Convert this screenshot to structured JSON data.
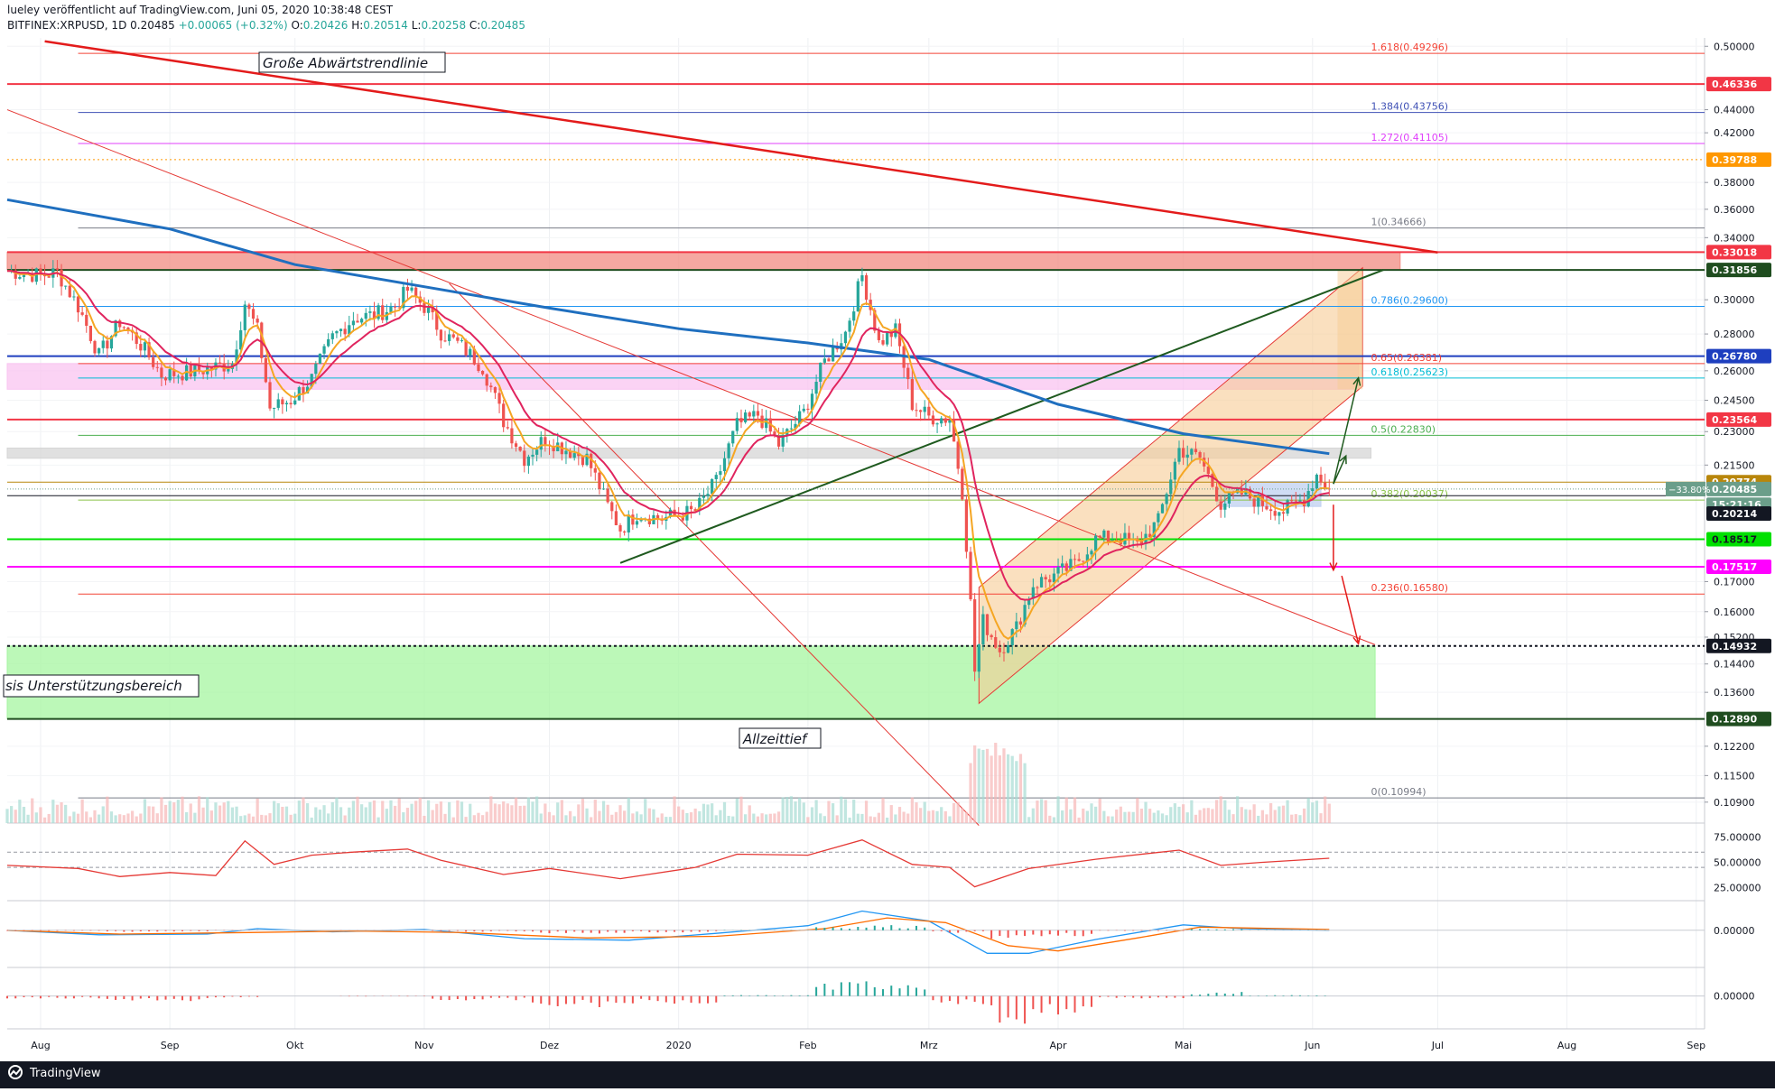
{
  "header": {
    "line1": "lueley veröffentlicht auf TradingView.com, Juni 05, 2020 10:38:48 CEST",
    "symbol_line": "BITFINEX:XRPUSD, 1D",
    "last": "0.20485",
    "change": "+0.00065 (+0.32%)",
    "ohlc": [
      {
        "k": "O:",
        "v": "0.20426"
      },
      {
        "k": "H:",
        "v": "0.20514"
      },
      {
        "k": "L:",
        "v": "0.20258"
      },
      {
        "k": "C:",
        "v": "0.20485"
      }
    ]
  },
  "footer": {
    "brand": "TradingView"
  },
  "colors": {
    "up": "#26a69a",
    "down": "#ef5350",
    "text": "#131722",
    "muted": "#787b86",
    "red": "#f23645",
    "green": "#1f7a1f",
    "blue": "#1e3fbf",
    "magenta": "#ff00ff"
  },
  "chart_data": [
    {
      "type": "candlestick",
      "title": "BITFINEX:XRPUSD, 1D",
      "x_axis": {
        "type": "date",
        "range": [
          "2019-07-24",
          "2020-09-03"
        ],
        "tick_labels": [
          {
            "label": "Aug",
            "date": "2019-08-01"
          },
          {
            "label": "Sep",
            "date": "2019-09-01"
          },
          {
            "label": "Okt",
            "date": "2019-10-01"
          },
          {
            "label": "Nov",
            "date": "2019-11-01"
          },
          {
            "label": "Dez",
            "date": "2019-12-01"
          },
          {
            "label": "2020",
            "date": "2020-01-01"
          },
          {
            "label": "Feb",
            "date": "2020-02-01"
          },
          {
            "label": "Mrz",
            "date": "2020-03-01"
          },
          {
            "label": "Apr",
            "date": "2020-04-01"
          },
          {
            "label": "Mai",
            "date": "2020-05-01"
          },
          {
            "label": "Jun",
            "date": "2020-06-01"
          },
          {
            "label": "Jul",
            "date": "2020-07-01"
          },
          {
            "label": "Aug",
            "date": "2020-08-01"
          },
          {
            "label": "Sep",
            "date": "2020-09-01"
          }
        ]
      },
      "y_axis": {
        "scale": "log",
        "range": [
          0.1045,
          0.5085
        ],
        "tick_labels": [
          "0.50000",
          "0.44000",
          "0.42000",
          "0.38000",
          "0.36000",
          "0.34000",
          "0.30000",
          "0.28000",
          "0.26000",
          "0.24500",
          "0.23000",
          "0.21500",
          "0.17000",
          "0.16000",
          "0.15200",
          "0.14400",
          "0.13600",
          "0.12200",
          "0.11500",
          "0.10900"
        ]
      },
      "close_path": [
        [
          "2019-07-24",
          0.318
        ],
        [
          "2019-08-01",
          0.315
        ],
        [
          "2019-08-05",
          0.317
        ],
        [
          "2019-08-10",
          0.296
        ],
        [
          "2019-08-15",
          0.268
        ],
        [
          "2019-08-20",
          0.287
        ],
        [
          "2019-08-25",
          0.274
        ],
        [
          "2019-08-30",
          0.258
        ],
        [
          "2019-09-05",
          0.259
        ],
        [
          "2019-09-10",
          0.261
        ],
        [
          "2019-09-16",
          0.264
        ],
        [
          "2019-09-19",
          0.298
        ],
        [
          "2019-09-22",
          0.282
        ],
        [
          "2019-09-25",
          0.241
        ],
        [
          "2019-09-30",
          0.245
        ],
        [
          "2019-10-05",
          0.256
        ],
        [
          "2019-10-10",
          0.278
        ],
        [
          "2019-10-15",
          0.289
        ],
        [
          "2019-10-20",
          0.291
        ],
        [
          "2019-10-25",
          0.296
        ],
        [
          "2019-10-28",
          0.306
        ],
        [
          "2019-11-01",
          0.296
        ],
        [
          "2019-11-05",
          0.281
        ],
        [
          "2019-11-10",
          0.273
        ],
        [
          "2019-11-15",
          0.262
        ],
        [
          "2019-11-20",
          0.235
        ],
        [
          "2019-11-25",
          0.218
        ],
        [
          "2019-11-30",
          0.227
        ],
        [
          "2019-12-05",
          0.222
        ],
        [
          "2019-12-10",
          0.218
        ],
        [
          "2019-12-15",
          0.198
        ],
        [
          "2019-12-18",
          0.189
        ],
        [
          "2019-12-22",
          0.195
        ],
        [
          "2019-12-28",
          0.193
        ],
        [
          "2020-01-05",
          0.196
        ],
        [
          "2020-01-10",
          0.208
        ],
        [
          "2020-01-15",
          0.233
        ],
        [
          "2020-01-20",
          0.238
        ],
        [
          "2020-01-25",
          0.224
        ],
        [
          "2020-01-31",
          0.239
        ],
        [
          "2020-02-05",
          0.265
        ],
        [
          "2020-02-10",
          0.281
        ],
        [
          "2020-02-14",
          0.315
        ],
        [
          "2020-02-18",
          0.275
        ],
        [
          "2020-02-22",
          0.282
        ],
        [
          "2020-02-26",
          0.243
        ],
        [
          "2020-03-01",
          0.237
        ],
        [
          "2020-03-06",
          0.236
        ],
        [
          "2020-03-09",
          0.204
        ],
        [
          "2020-03-12",
          0.142
        ],
        [
          "2020-03-14",
          0.157
        ],
        [
          "2020-03-18",
          0.148
        ],
        [
          "2020-03-22",
          0.155
        ],
        [
          "2020-03-26",
          0.169
        ],
        [
          "2020-03-31",
          0.172
        ],
        [
          "2020-04-05",
          0.176
        ],
        [
          "2020-04-10",
          0.185
        ],
        [
          "2020-04-15",
          0.186
        ],
        [
          "2020-04-20",
          0.183
        ],
        [
          "2020-04-25",
          0.192
        ],
        [
          "2020-04-30",
          0.222
        ],
        [
          "2020-05-05",
          0.218
        ],
        [
          "2020-05-10",
          0.199
        ],
        [
          "2020-05-15",
          0.203
        ],
        [
          "2020-05-20",
          0.199
        ],
        [
          "2020-05-25",
          0.196
        ],
        [
          "2020-05-30",
          0.201
        ],
        [
          "2020-06-02",
          0.211
        ],
        [
          "2020-06-05",
          0.20485
        ]
      ],
      "moving_averages": {
        "ma_blue": [
          [
            "2019-07-24",
            0.367
          ],
          [
            "2019-09-01",
            0.346
          ],
          [
            "2019-10-01",
            0.322
          ],
          [
            "2019-11-01",
            0.308
          ],
          [
            "2019-12-01",
            0.295
          ],
          [
            "2020-01-01",
            0.283
          ],
          [
            "2020-02-01",
            0.275
          ],
          [
            "2020-03-01",
            0.266
          ],
          [
            "2020-04-01",
            0.243
          ],
          [
            "2020-05-01",
            0.229
          ],
          [
            "2020-06-05",
            0.22
          ]
        ],
        "ma_orange": "short exponential average following price",
        "ma_crimson": "medium average following price"
      },
      "horizontal_levels": [
        {
          "label": "1.618(0.49296)",
          "price": 0.49296,
          "color": "#f44336"
        },
        {
          "label": "0.46336",
          "price": 0.46336,
          "color": "#f23645"
        },
        {
          "label": "1.384(0.43756)",
          "price": 0.43756,
          "color": "#3f51b5"
        },
        {
          "label": "1.272(0.41105)",
          "price": 0.41105,
          "color": "#e040fb"
        },
        {
          "label": "0.39788",
          "price": 0.39788,
          "color": "#ff9800"
        },
        {
          "label": "1(0.34666)",
          "price": 0.34666,
          "color": "#787b86"
        },
        {
          "label": "0.33018",
          "price": 0.33018,
          "color": "#f23645"
        },
        {
          "label": "0.31856",
          "price": 0.31856,
          "color": "#1f4d1f"
        },
        {
          "label": "0.786(0.29600)",
          "price": 0.296,
          "color": "#2196f3"
        },
        {
          "label": "0.26780",
          "price": 0.2678,
          "color": "#1e3fbf"
        },
        {
          "label": "0.65(0.26381)",
          "price": 0.26381,
          "color": "#f44336"
        },
        {
          "label": "0.618(0.25623)",
          "price": 0.25623,
          "color": "#00bcd4"
        },
        {
          "label": "0.23564",
          "price": 0.23564,
          "color": "#f23645"
        },
        {
          "label": "0.5(0.22830)",
          "price": 0.2283,
          "color": "#4caf50"
        },
        {
          "label": "0.20774",
          "price": 0.20774,
          "color": "#b8860b"
        },
        {
          "label": "0.382(0.20037)",
          "price": 0.20037,
          "color": "#8bc34a"
        },
        {
          "label": "0.20214",
          "price": 0.20214,
          "color": "#131722"
        },
        {
          "label": "0.18517",
          "price": 0.18517,
          "color": "#00e000"
        },
        {
          "label": "0.17517",
          "price": 0.17517,
          "color": "#ff00ff"
        },
        {
          "label": "0.236(0.16580)",
          "price": 0.1658,
          "color": "#f44336"
        },
        {
          "label": "0.14932",
          "price": 0.14932,
          "color": "#131722"
        },
        {
          "label": "0.12890",
          "price": 0.1289,
          "color": "#1f4d1f"
        },
        {
          "label": "0(0.10994)",
          "price": 0.10994,
          "color": "#787b86"
        }
      ],
      "price_tags": [
        {
          "text": "0.46336",
          "price": 0.46336,
          "bg": "#f23645",
          "fg": "#ffffff"
        },
        {
          "text": "0.39788",
          "price": 0.39788,
          "bg": "#ff9800",
          "fg": "#ffffff"
        },
        {
          "text": "0.33018",
          "price": 0.33018,
          "bg": "#f23645",
          "fg": "#ffffff"
        },
        {
          "text": "0.31856",
          "price": 0.31856,
          "bg": "#1f4d1f",
          "fg": "#ffffff"
        },
        {
          "text": "0.26780",
          "price": 0.2678,
          "bg": "#1e3fbf",
          "fg": "#ffffff"
        },
        {
          "text": "0.23564",
          "price": 0.23564,
          "bg": "#f23645",
          "fg": "#ffffff"
        },
        {
          "text": "0.20774",
          "price": 0.20774,
          "bg": "#b8860b",
          "fg": "#ffffff"
        },
        {
          "text": "0.20485",
          "price": 0.20485,
          "bg": "#6b9e8a",
          "fg": "#ffffff"
        },
        {
          "text": "15:21:16",
          "price": 0.1985,
          "bg": "#6b9e8a",
          "fg": "#ffffff"
        },
        {
          "text": "0.20214",
          "price": 0.195,
          "bg": "#131722",
          "fg": "#ffffff"
        },
        {
          "text": "0.18517",
          "price": 0.18517,
          "bg": "#00e000",
          "fg": "#131722"
        },
        {
          "text": "0.17517",
          "price": 0.17517,
          "bg": "#ff00ff",
          "fg": "#ffffff"
        },
        {
          "text": "0.14932",
          "price": 0.14932,
          "bg": "#131722",
          "fg": "#ffffff"
        },
        {
          "text": "0.12890",
          "price": 0.1289,
          "bg": "#1f4d1f",
          "fg": "#ffffff"
        }
      ],
      "percent_tag": "−33.80%",
      "zones": [
        {
          "name": "resistance-zone-red",
          "from": "2019-07-24",
          "to": "2020-06-22",
          "low": 0.3186,
          "high": 0.3302,
          "color": "#f28b82"
        },
        {
          "name": "zone-pink",
          "from": "2019-07-24",
          "to": "2020-06-12",
          "low": 0.2505,
          "high": 0.2638,
          "color": "#f9c4f0"
        },
        {
          "name": "zone-grey",
          "from": "2019-07-24",
          "to": "2020-06-15",
          "low": 0.218,
          "high": 0.2225,
          "color": "#d5d5d5"
        },
        {
          "name": "support-zone-green",
          "from": "2019-07-24",
          "to": "2020-06-16",
          "low": 0.1289,
          "high": 0.1493,
          "color": "#a5f5a0"
        },
        {
          "name": "consolidation-box",
          "from": "2020-05-09",
          "to": "2020-06-03",
          "low": 0.1978,
          "high": 0.208,
          "color": "#bfd0f0"
        }
      ],
      "trendlines": [
        {
          "name": "great-downtrend-line",
          "from": [
            "2019-08-02",
            0.505
          ],
          "to": [
            "2020-07-01",
            0.33
          ],
          "color": "#e31b1b"
        },
        {
          "name": "thin-downtrend-1",
          "from": [
            "2019-07-24",
            0.44
          ],
          "to": [
            "2020-06-16",
            0.1497
          ],
          "color": "#e53935"
        },
        {
          "name": "thin-downtrend-2",
          "from": [
            "2019-11-07",
            0.31
          ],
          "to": [
            "2020-03-13",
            0.104
          ],
          "color": "#e53935"
        },
        {
          "name": "rising-support-line",
          "from": [
            "2019-12-18",
            0.1765
          ],
          "to": [
            "2020-06-18",
            0.3186
          ],
          "color": "#1f5a1f"
        }
      ],
      "channel": {
        "color": "#f6cb94",
        "lower": [
          [
            "2020-03-13",
            0.133
          ],
          [
            "2020-06-13",
            0.252
          ]
        ],
        "upper": [
          [
            "2020-03-13",
            0.168
          ],
          [
            "2020-06-13",
            0.32
          ]
        ]
      },
      "annotations": [
        "Große Abwärtstrendlinie",
        "sis Unterstützungsbereich",
        "Allzeittief"
      ]
    },
    {
      "type": "line",
      "name": "rsi-panel",
      "y_tick_labels": [
        "75.00000",
        "50.00000",
        "25.00000"
      ],
      "y_range": [
        15,
        85
      ],
      "series": [
        [
          [
            "2019-07-24",
            47
          ],
          [
            "2019-08-10",
            44
          ],
          [
            "2019-08-20",
            36
          ],
          [
            "2019-09-01",
            40
          ],
          [
            "2019-09-12",
            37
          ],
          [
            "2019-09-19",
            71
          ],
          [
            "2019-09-26",
            48
          ],
          [
            "2019-10-05",
            57
          ],
          [
            "2019-10-15",
            60
          ],
          [
            "2019-10-28",
            63
          ],
          [
            "2019-11-05",
            52
          ],
          [
            "2019-11-20",
            38
          ],
          [
            "2019-12-01",
            44
          ],
          [
            "2019-12-18",
            34
          ],
          [
            "2020-01-05",
            45
          ],
          [
            "2020-01-15",
            58
          ],
          [
            "2020-02-01",
            57
          ],
          [
            "2020-02-14",
            72
          ],
          [
            "2020-02-26",
            48
          ],
          [
            "2020-03-06",
            45
          ],
          [
            "2020-03-12",
            26
          ],
          [
            "2020-03-25",
            44
          ],
          [
            "2020-04-10",
            53
          ],
          [
            "2020-04-30",
            62
          ],
          [
            "2020-05-10",
            47
          ],
          [
            "2020-05-20",
            50
          ],
          [
            "2020-06-05",
            54
          ]
        ]
      ],
      "reference_lines": [
        60,
        45
      ]
    },
    {
      "type": "line",
      "name": "macd-panel",
      "y_tick_labels": [
        "0.00000"
      ],
      "y_range": [
        -0.045,
        0.035
      ],
      "series": [
        [
          [
            "2019-07-24",
            0.0
          ],
          [
            "2019-08-15",
            -0.006
          ],
          [
            "2019-09-10",
            -0.005
          ],
          [
            "2019-09-22",
            0.002
          ],
          [
            "2019-10-10",
            -0.002
          ],
          [
            "2019-11-01",
            0.001
          ],
          [
            "2019-11-25",
            -0.011
          ],
          [
            "2019-12-20",
            -0.013
          ],
          [
            "2020-01-10",
            -0.004
          ],
          [
            "2020-02-01",
            0.006
          ],
          [
            "2020-02-14",
            0.025
          ],
          [
            "2020-03-01",
            0.012
          ],
          [
            "2020-03-15",
            -0.03
          ],
          [
            "2020-03-25",
            -0.03
          ],
          [
            "2020-04-10",
            -0.012
          ],
          [
            "2020-05-01",
            0.007
          ],
          [
            "2020-05-15",
            0.002
          ],
          [
            "2020-06-05",
            0.0
          ]
        ],
        [
          [
            "2019-07-24",
            0.0
          ],
          [
            "2019-08-20",
            -0.005
          ],
          [
            "2019-09-20",
            -0.003
          ],
          [
            "2019-10-15",
            -0.001
          ],
          [
            "2019-11-10",
            -0.003
          ],
          [
            "2019-12-10",
            -0.01
          ],
          [
            "2020-01-10",
            -0.008
          ],
          [
            "2020-02-05",
            0.002
          ],
          [
            "2020-02-20",
            0.016
          ],
          [
            "2020-03-05",
            0.01
          ],
          [
            "2020-03-20",
            -0.02
          ],
          [
            "2020-04-01",
            -0.027
          ],
          [
            "2020-04-20",
            -0.01
          ],
          [
            "2020-05-05",
            0.004
          ],
          [
            "2020-06-05",
            0.001
          ]
        ]
      ]
    },
    {
      "type": "bar",
      "name": "oscillator-panel",
      "y_tick_labels": [
        "0.00000"
      ],
      "y_range": [
        -0.03,
        0.025
      ]
    }
  ],
  "text_annotations": {
    "downtrend": "Große Abwärtstrendlinie",
    "support": "sis Unterstützungsbereich",
    "ath_low": "Allzeittief"
  }
}
